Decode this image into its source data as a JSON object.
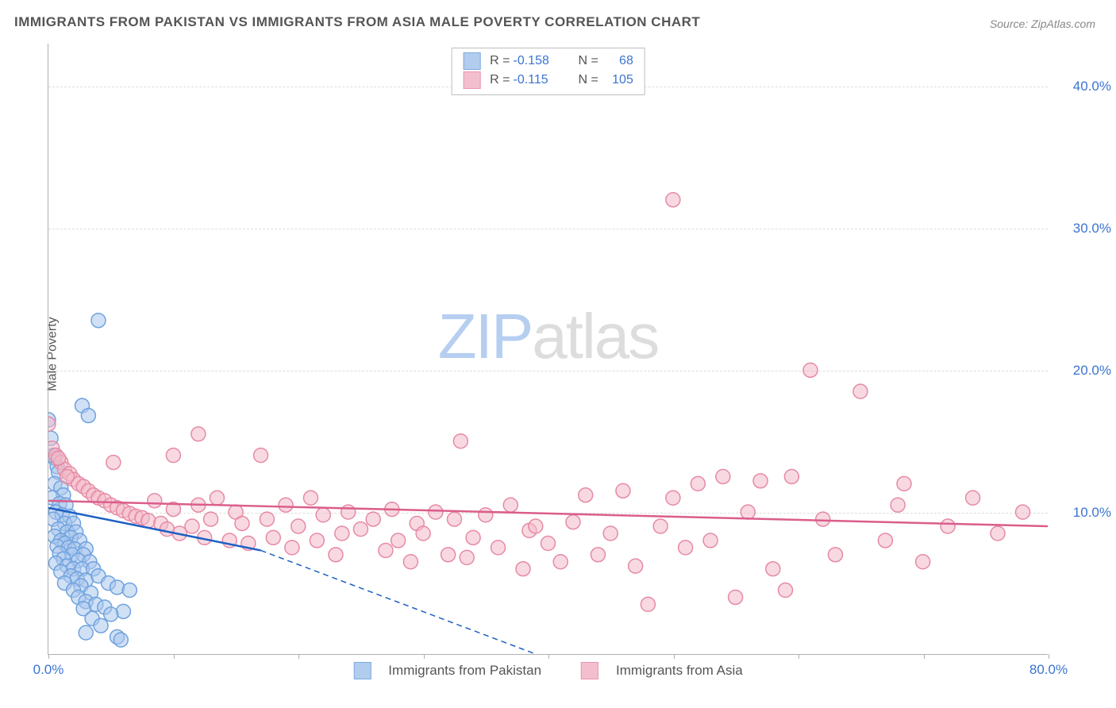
{
  "title": "IMMIGRANTS FROM PAKISTAN VS IMMIGRANTS FROM ASIA MALE POVERTY CORRELATION CHART",
  "source": "Source: ZipAtlas.com",
  "ylabel": "Male Poverty",
  "watermark_zip": "ZIP",
  "watermark_atlas": "atlas",
  "chart": {
    "type": "scatter-correlation",
    "background_color": "#ffffff",
    "grid_color": "#dddddd",
    "axis_color": "#b0b0b0",
    "tick_label_color": "#3b74d1",
    "title_color": "#555555",
    "xlim": [
      0,
      80
    ],
    "ylim": [
      0,
      43
    ],
    "xticks": [
      0,
      10,
      20,
      30,
      40,
      50,
      60,
      70,
      80
    ],
    "ytick_lines": [
      10,
      20,
      30,
      40
    ],
    "x_axis_labels": [
      {
        "value": 0,
        "text": "0.0%"
      },
      {
        "value": 80,
        "text": "80.0%"
      }
    ],
    "y_axis_labels": [
      {
        "value": 10,
        "text": "10.0%"
      },
      {
        "value": 20,
        "text": "20.0%"
      },
      {
        "value": 30,
        "text": "30.0%"
      },
      {
        "value": 40,
        "text": "40.0%"
      }
    ],
    "marker_radius": 9,
    "marker_stroke_width": 1.5,
    "line_width": 2.5,
    "series": [
      {
        "key": "pakistan",
        "name": "Immigrants from Pakistan",
        "fill": "#a9c7ec",
        "fill_opacity": 0.55,
        "stroke": "#6fa2de",
        "line_color": "#1c5fc4",
        "R": "-0.158",
        "N": "68",
        "trend_solid": {
          "x1": 0,
          "y1": 10.3,
          "x2": 17,
          "y2": 7.3
        },
        "trend_dash": {
          "x1": 17,
          "y1": 7.3,
          "x2": 39,
          "y2": 0
        },
        "points": [
          [
            0.0,
            16.5
          ],
          [
            0.2,
            15.2
          ],
          [
            0.4,
            14.0
          ],
          [
            0.5,
            13.8
          ],
          [
            0.7,
            13.2
          ],
          [
            0.8,
            12.8
          ],
          [
            0.5,
            12.0
          ],
          [
            1.0,
            11.7
          ],
          [
            1.2,
            11.2
          ],
          [
            0.3,
            11.0
          ],
          [
            0.9,
            10.6
          ],
          [
            1.4,
            10.5
          ],
          [
            0.6,
            10.0
          ],
          [
            1.1,
            9.8
          ],
          [
            1.7,
            9.7
          ],
          [
            0.4,
            9.5
          ],
          [
            1.3,
            9.2
          ],
          [
            2.0,
            9.2
          ],
          [
            0.8,
            8.8
          ],
          [
            1.5,
            8.6
          ],
          [
            2.2,
            8.6
          ],
          [
            0.5,
            8.3
          ],
          [
            1.8,
            8.2
          ],
          [
            1.0,
            8.0
          ],
          [
            2.5,
            8.0
          ],
          [
            1.3,
            7.8
          ],
          [
            0.7,
            7.6
          ],
          [
            1.6,
            7.5
          ],
          [
            2.1,
            7.4
          ],
          [
            3.0,
            7.4
          ],
          [
            0.9,
            7.1
          ],
          [
            1.9,
            7.0
          ],
          [
            2.8,
            7.0
          ],
          [
            1.2,
            6.7
          ],
          [
            2.4,
            6.6
          ],
          [
            0.6,
            6.4
          ],
          [
            3.3,
            6.5
          ],
          [
            1.5,
            6.2
          ],
          [
            2.0,
            6.0
          ],
          [
            2.7,
            6.0
          ],
          [
            1.0,
            5.8
          ],
          [
            3.6,
            6.0
          ],
          [
            1.8,
            5.5
          ],
          [
            2.3,
            5.3
          ],
          [
            3.0,
            5.2
          ],
          [
            4.0,
            5.5
          ],
          [
            1.3,
            5.0
          ],
          [
            2.6,
            4.8
          ],
          [
            4.8,
            5.0
          ],
          [
            2.0,
            4.5
          ],
          [
            3.4,
            4.3
          ],
          [
            5.5,
            4.7
          ],
          [
            2.4,
            4.0
          ],
          [
            6.5,
            4.5
          ],
          [
            3.0,
            3.7
          ],
          [
            3.8,
            3.5
          ],
          [
            2.8,
            3.2
          ],
          [
            4.5,
            3.3
          ],
          [
            6.0,
            3.0
          ],
          [
            3.5,
            2.5
          ],
          [
            5.0,
            2.8
          ],
          [
            4.2,
            2.0
          ],
          [
            3.0,
            1.5
          ],
          [
            5.5,
            1.2
          ],
          [
            5.8,
            1.0
          ],
          [
            4.0,
            23.5
          ],
          [
            2.7,
            17.5
          ],
          [
            3.2,
            16.8
          ]
        ]
      },
      {
        "key": "asia",
        "name": "Immigrants from Asia",
        "fill": "#f2b9c9",
        "fill_opacity": 0.55,
        "stroke": "#e68aa4",
        "line_color": "#db5d8b",
        "R": "-0.115",
        "N": "105",
        "trend_solid": {
          "x1": 0,
          "y1": 10.8,
          "x2": 80,
          "y2": 9.0
        },
        "trend_dash": null,
        "points": [
          [
            0.0,
            16.2
          ],
          [
            0.3,
            14.5
          ],
          [
            0.6,
            14.0
          ],
          [
            1.0,
            13.5
          ],
          [
            1.3,
            13.0
          ],
          [
            1.7,
            12.7
          ],
          [
            2.0,
            12.3
          ],
          [
            2.4,
            12.0
          ],
          [
            0.8,
            13.8
          ],
          [
            1.5,
            12.5
          ],
          [
            2.8,
            11.8
          ],
          [
            3.2,
            11.5
          ],
          [
            3.6,
            11.2
          ],
          [
            4.0,
            11.0
          ],
          [
            4.5,
            10.8
          ],
          [
            5.0,
            10.5
          ],
          [
            5.5,
            10.3
          ],
          [
            6.0,
            10.1
          ],
          [
            5.2,
            13.5
          ],
          [
            6.5,
            9.9
          ],
          [
            7.0,
            9.7
          ],
          [
            7.5,
            9.6
          ],
          [
            8.0,
            9.4
          ],
          [
            8.5,
            10.8
          ],
          [
            9.0,
            9.2
          ],
          [
            9.5,
            8.8
          ],
          [
            10.0,
            10.2
          ],
          [
            10.5,
            8.5
          ],
          [
            11.5,
            9.0
          ],
          [
            12.0,
            10.5
          ],
          [
            12.5,
            8.2
          ],
          [
            13.0,
            9.5
          ],
          [
            13.5,
            11.0
          ],
          [
            14.5,
            8.0
          ],
          [
            15.0,
            10.0
          ],
          [
            15.5,
            9.2
          ],
          [
            16.0,
            7.8
          ],
          [
            17.0,
            14.0
          ],
          [
            17.5,
            9.5
          ],
          [
            18.0,
            8.2
          ],
          [
            19.0,
            10.5
          ],
          [
            19.5,
            7.5
          ],
          [
            20.0,
            9.0
          ],
          [
            21.0,
            11.0
          ],
          [
            21.5,
            8.0
          ],
          [
            22.0,
            9.8
          ],
          [
            23.0,
            7.0
          ],
          [
            23.5,
            8.5
          ],
          [
            24.0,
            10.0
          ],
          [
            25.0,
            8.8
          ],
          [
            26.0,
            9.5
          ],
          [
            27.0,
            7.3
          ],
          [
            27.5,
            10.2
          ],
          [
            28.0,
            8.0
          ],
          [
            29.0,
            6.5
          ],
          [
            29.5,
            9.2
          ],
          [
            30.0,
            8.5
          ],
          [
            31.0,
            10.0
          ],
          [
            32.0,
            7.0
          ],
          [
            32.5,
            9.5
          ],
          [
            33.0,
            15.0
          ],
          [
            33.5,
            6.8
          ],
          [
            34.0,
            8.2
          ],
          [
            35.0,
            9.8
          ],
          [
            36.0,
            7.5
          ],
          [
            37.0,
            10.5
          ],
          [
            38.0,
            6.0
          ],
          [
            38.5,
            8.7
          ],
          [
            39.0,
            9.0
          ],
          [
            40.0,
            7.8
          ],
          [
            41.0,
            6.5
          ],
          [
            42.0,
            9.3
          ],
          [
            43.0,
            11.2
          ],
          [
            44.0,
            7.0
          ],
          [
            45.0,
            8.5
          ],
          [
            46.0,
            11.5
          ],
          [
            47.0,
            6.2
          ],
          [
            48.0,
            3.5
          ],
          [
            49.0,
            9.0
          ],
          [
            50.0,
            32.0
          ],
          [
            50.0,
            11.0
          ],
          [
            51.0,
            7.5
          ],
          [
            52.0,
            12.0
          ],
          [
            53.0,
            8.0
          ],
          [
            54.0,
            12.5
          ],
          [
            55.0,
            4.0
          ],
          [
            56.0,
            10.0
          ],
          [
            57.0,
            12.2
          ],
          [
            58.0,
            6.0
          ],
          [
            59.0,
            4.5
          ],
          [
            59.5,
            12.5
          ],
          [
            61.0,
            20.0
          ],
          [
            62.0,
            9.5
          ],
          [
            63.0,
            7.0
          ],
          [
            65.0,
            18.5
          ],
          [
            67.0,
            8.0
          ],
          [
            68.0,
            10.5
          ],
          [
            68.5,
            12.0
          ],
          [
            70.0,
            6.5
          ],
          [
            72.0,
            9.0
          ],
          [
            74.0,
            11.0
          ],
          [
            76.0,
            8.5
          ],
          [
            78.0,
            10.0
          ],
          [
            12.0,
            15.5
          ],
          [
            10.0,
            14.0
          ]
        ]
      }
    ]
  }
}
